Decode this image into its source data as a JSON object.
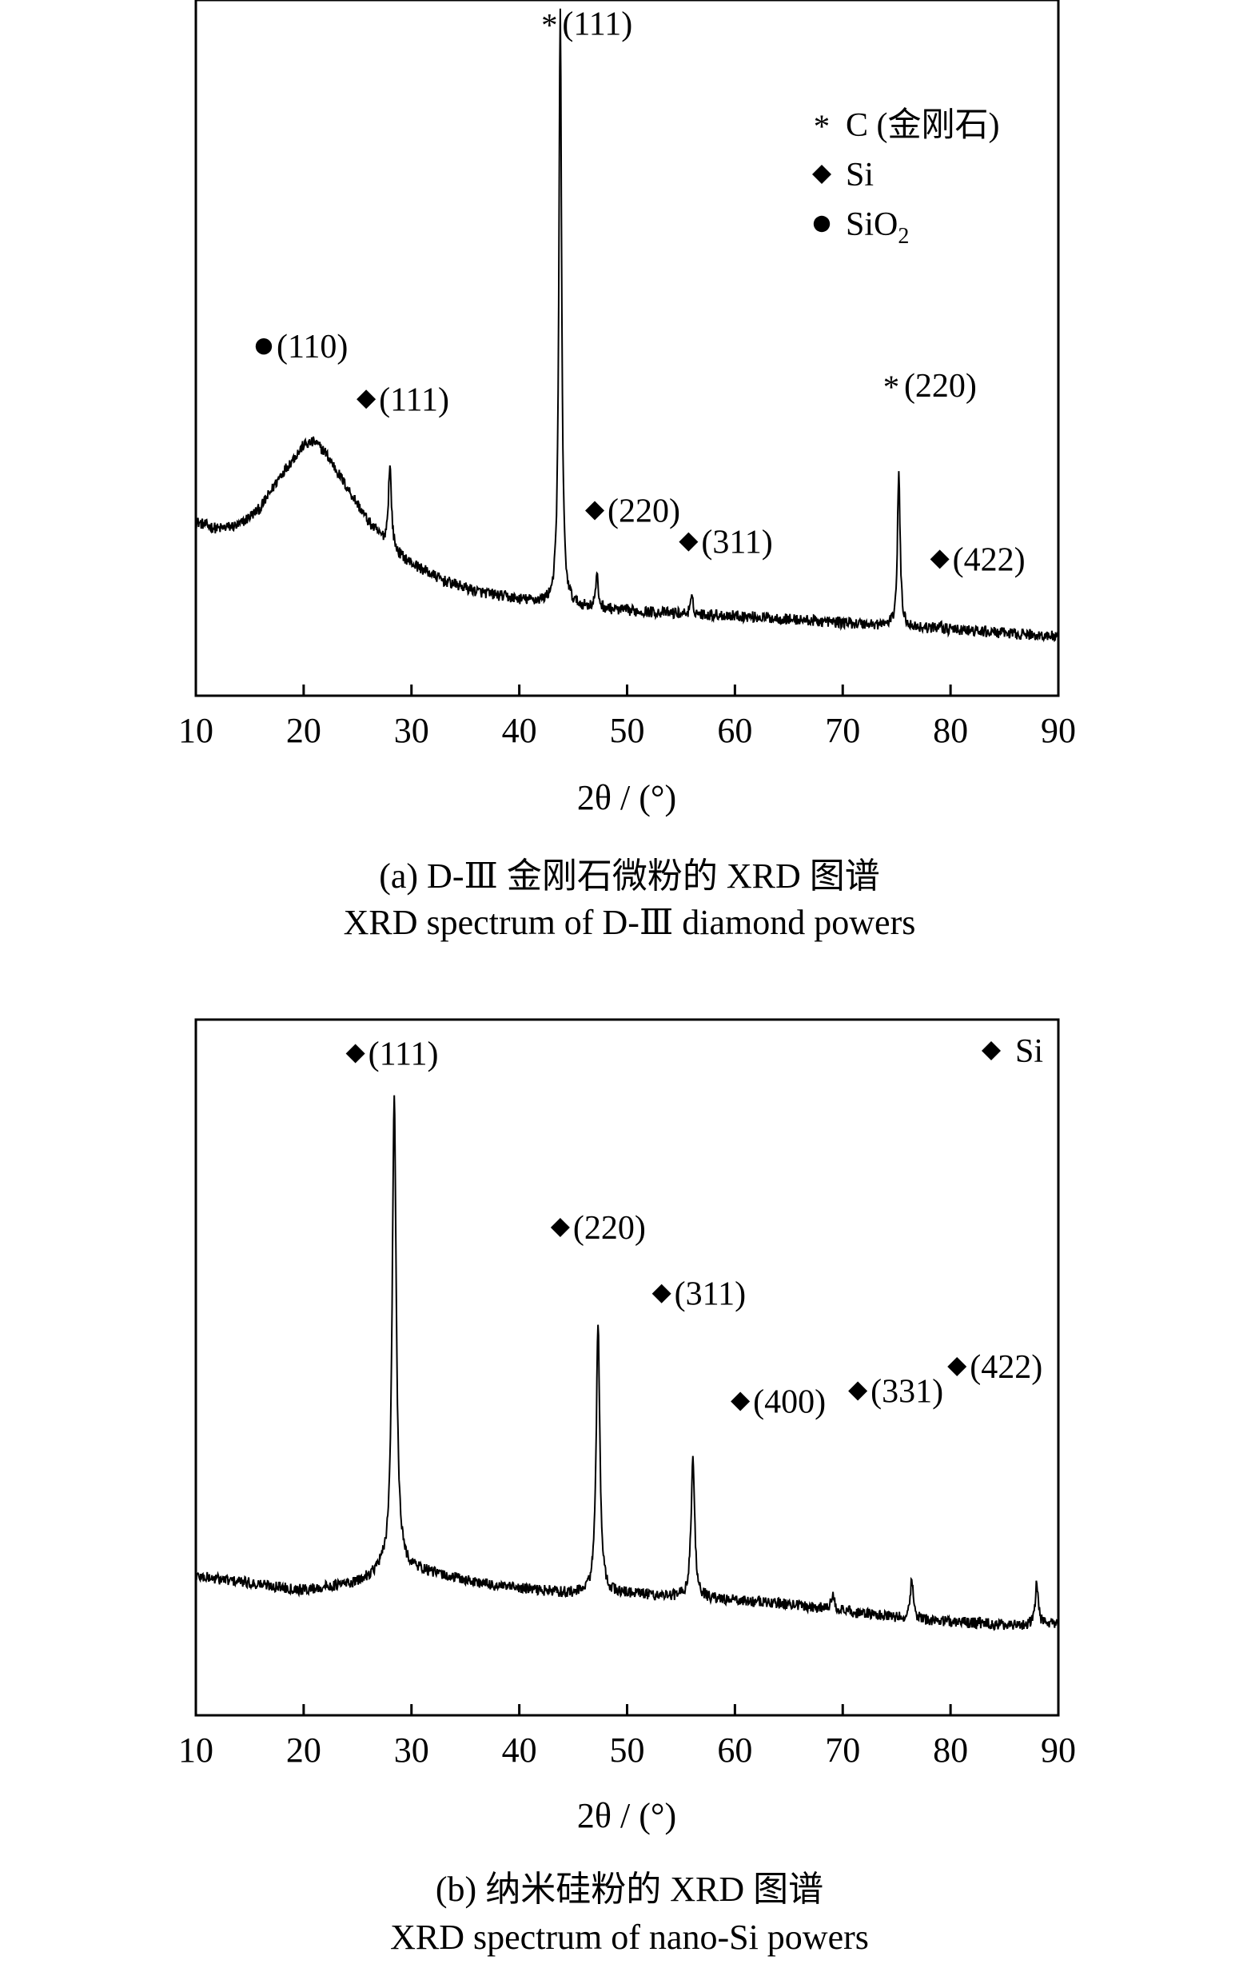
{
  "charts": [
    {
      "id": "a",
      "chart_data": {
        "type": "line",
        "xlabel": "2θ / (°)",
        "xlim": [
          10,
          90
        ],
        "x_ticks": [
          10,
          20,
          30,
          40,
          50,
          60,
          70,
          80,
          90
        ],
        "ylim": [
          0,
          100
        ],
        "grid": false,
        "legend": {
          "placement": "top-right",
          "entries": [
            {
              "symbol": "asterisk",
              "text": "C (金刚石)"
            },
            {
              "symbol": "diamond",
              "text": "Si"
            },
            {
              "symbol": "circle",
              "text": "SiO2"
            }
          ]
        },
        "baseline": [
          [
            10,
            25.0
          ],
          [
            12,
            24.0
          ],
          [
            14,
            24.5
          ],
          [
            16,
            27.0
          ],
          [
            18,
            32.0
          ],
          [
            20,
            36.0
          ],
          [
            21,
            36.5
          ],
          [
            22,
            35.0
          ],
          [
            24,
            30.0
          ],
          [
            26,
            25.0
          ],
          [
            28,
            21.0
          ],
          [
            30,
            19.0
          ],
          [
            33,
            16.5
          ],
          [
            36,
            15.0
          ],
          [
            40,
            13.8
          ],
          [
            45,
            12.8
          ],
          [
            50,
            12.2
          ],
          [
            55,
            11.8
          ],
          [
            60,
            11.5
          ],
          [
            65,
            11.0
          ],
          [
            70,
            10.5
          ],
          [
            75,
            10.0
          ],
          [
            80,
            9.5
          ],
          [
            85,
            9.0
          ],
          [
            90,
            8.5
          ]
        ],
        "peaks": [
          {
            "x": 28.0,
            "height": 12.0,
            "width": 0.35
          },
          {
            "x": 43.8,
            "height": 85.0,
            "width": 0.3
          },
          {
            "x": 47.2,
            "height": 4.5,
            "width": 0.3
          },
          {
            "x": 56.0,
            "height": 2.2,
            "width": 0.3
          },
          {
            "x": 75.2,
            "height": 22.0,
            "width": 0.3
          },
          {
            "x": 79.0,
            "height": 0.8,
            "width": 0.3
          }
        ],
        "annotations": [
          {
            "symbol": "circle",
            "text": "(110)"
          },
          {
            "symbol": "diamond",
            "text": "(111)"
          },
          {
            "symbol": "asterisk",
            "text": "(111)"
          },
          {
            "symbol": "diamond",
            "text": "(220)"
          },
          {
            "symbol": "diamond",
            "text": "(311)"
          },
          {
            "symbol": "asterisk",
            "text": "(220)"
          },
          {
            "symbol": "diamond",
            "text": "(422)"
          }
        ]
      },
      "caption_cn": "(a) D-Ⅲ 金刚石微粉的 XRD 图谱",
      "caption_en": "XRD spectrum of D-Ⅲ diamond powers"
    },
    {
      "id": "b",
      "chart_data": {
        "type": "line",
        "xlabel": "2θ / (°)",
        "xlim": [
          10,
          90
        ],
        "x_ticks": [
          10,
          20,
          30,
          40,
          50,
          60,
          70,
          80,
          90
        ],
        "ylim": [
          0,
          100
        ],
        "grid": false,
        "legend": {
          "placement": "top-right",
          "entries": [
            {
              "symbol": "diamond",
              "text": "Si"
            }
          ]
        },
        "baseline": [
          [
            10,
            20.0
          ],
          [
            15,
            19.0
          ],
          [
            20,
            18.0
          ],
          [
            25,
            19.0
          ],
          [
            27,
            20.5
          ],
          [
            30,
            21.0
          ],
          [
            33,
            20.0
          ],
          [
            38,
            18.5
          ],
          [
            45,
            17.5
          ],
          [
            50,
            17.5
          ],
          [
            55,
            17.0
          ],
          [
            60,
            16.5
          ],
          [
            65,
            16.0
          ],
          [
            70,
            15.0
          ],
          [
            75,
            14.0
          ],
          [
            80,
            13.5
          ],
          [
            85,
            13.0
          ],
          [
            90,
            13.0
          ]
        ],
        "peaks": [
          {
            "x": 28.4,
            "height": 68.0,
            "width": 0.45
          },
          {
            "x": 47.3,
            "height": 39.0,
            "width": 0.4
          },
          {
            "x": 56.1,
            "height": 20.0,
            "width": 0.4
          },
          {
            "x": 69.1,
            "height": 2.5,
            "width": 0.35
          },
          {
            "x": 76.4,
            "height": 5.5,
            "width": 0.35
          },
          {
            "x": 88.0,
            "height": 6.0,
            "width": 0.35
          }
        ],
        "annotations": [
          {
            "symbol": "diamond",
            "text": "(111)"
          },
          {
            "symbol": "diamond",
            "text": "(220)"
          },
          {
            "symbol": "diamond",
            "text": "(311)"
          },
          {
            "symbol": "diamond",
            "text": "(400)"
          },
          {
            "symbol": "diamond",
            "text": "(331)"
          },
          {
            "symbol": "diamond",
            "text": "(422)"
          }
        ]
      },
      "caption_cn": "(b) 纳米硅粉的 XRD 图谱",
      "caption_en": "XRD spectrum of nano-Si powers"
    }
  ]
}
